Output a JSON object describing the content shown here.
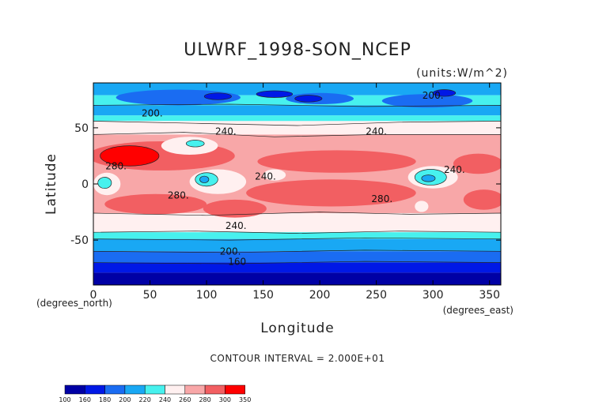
{
  "chart_data": {
    "type": "heatmap",
    "title": "ULWRF_1998-SON_NCEP",
    "units": "(units:W/m^2)",
    "xlabel": "Longitude",
    "ylabel": "Latitude",
    "x_unit_note": "(degrees_east)",
    "y_unit_note": "(degrees_north)",
    "xlim": [
      0,
      360
    ],
    "ylim": [
      -90,
      90
    ],
    "x_ticks": [
      0,
      50,
      100,
      150,
      200,
      250,
      300,
      350
    ],
    "y_ticks": [
      -50,
      0,
      50
    ],
    "contour_interval": "CONTOUR INTERVAL = 2.000E+01",
    "contour_labels": [
      {
        "text": "200.",
        "lon": 52,
        "lat": 60
      },
      {
        "text": "200.",
        "lon": 300,
        "lat": 76
      },
      {
        "text": "240.",
        "lon": 117,
        "lat": 44
      },
      {
        "text": "240.",
        "lon": 250,
        "lat": 44
      },
      {
        "text": "280.",
        "lon": 20,
        "lat": 13
      },
      {
        "text": "240.",
        "lon": 152,
        "lat": 4
      },
      {
        "text": "240.",
        "lon": 319,
        "lat": 10
      },
      {
        "text": "280.",
        "lon": 75,
        "lat": -13
      },
      {
        "text": "280.",
        "lon": 255,
        "lat": -16
      },
      {
        "text": "240.",
        "lon": 126,
        "lat": -40
      },
      {
        "text": "200.",
        "lon": 121,
        "lat": -63
      },
      {
        "text": "160",
        "lon": 127,
        "lat": -72
      }
    ],
    "colorbar": {
      "ticks": [
        100,
        160,
        180,
        200,
        220,
        240,
        260,
        280,
        300,
        350
      ],
      "colors": [
        "#0000a5",
        "#0018e6",
        "#1a6cf2",
        "#19a8f4",
        "#47f1ee",
        "#fff0f0",
        "#f8a7a8",
        "#f25f62",
        "#ff0000"
      ]
    },
    "fill_colors": {
      "c140": "#0000a5",
      "c170": "#0018e6",
      "c190": "#1a6cf2",
      "c210": "#19a8f4",
      "c230": "#47f1ee",
      "c250": "#fff0f0",
      "c270": "#f8a7a8",
      "c290": "#f25f62",
      "c320": "#ff0000"
    }
  }
}
